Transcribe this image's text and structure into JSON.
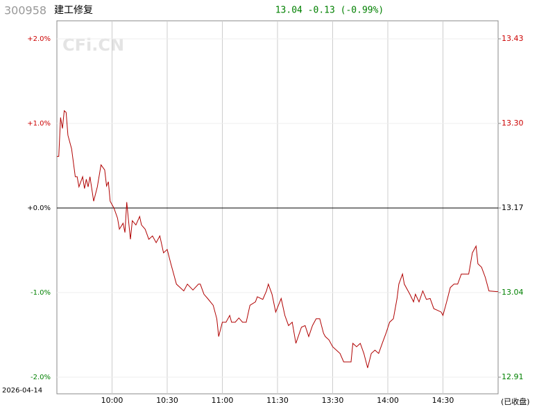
{
  "chart_data": {
    "type": "line",
    "code": "300958",
    "name": "建工修复",
    "quote": "13.04 -0.13 (-0.99%)",
    "date": "2026-04-14",
    "status": "(已收盘)",
    "watermark": "CFi.CN",
    "color": "#b00000",
    "up_color": "#cc0000",
    "down_color": "#008000",
    "flat_color": "#000000",
    "grid": true,
    "xlim": [
      0,
      240
    ],
    "xticks": [
      {
        "value": 30,
        "label": "10:00"
      },
      {
        "value": 60,
        "label": "10:30"
      },
      {
        "value": 90,
        "label": "11:00"
      },
      {
        "value": 120,
        "label": "11:30"
      },
      {
        "value": 150,
        "label": "13:30"
      },
      {
        "value": 180,
        "label": "14:00"
      },
      {
        "value": 210,
        "label": "14:30"
      }
    ],
    "ylim": [
      -2,
      2
    ],
    "yticks": [
      {
        "value": 2,
        "label": "+2.0%"
      },
      {
        "value": 1,
        "label": "+1.0%"
      },
      {
        "value": 0,
        "label": "+0.0%"
      },
      {
        "value": -1,
        "label": "-1.0%"
      },
      {
        "value": -2,
        "label": "-2.0%"
      }
    ],
    "y2lim": [
      12.91,
      13.43
    ],
    "y2ticks": [
      {
        "value": 13.43,
        "label": "13.43"
      },
      {
        "value": 13.3,
        "label": "13.30"
      },
      {
        "value": 13.17,
        "label": "13.17"
      },
      {
        "value": 13.04,
        "label": "13.04"
      },
      {
        "value": 12.91,
        "label": "12.91"
      }
    ],
    "x": [
      0,
      1,
      2,
      3,
      4,
      5,
      6,
      8,
      10,
      11,
      12,
      14,
      15,
      16,
      17,
      18,
      20,
      22,
      24,
      26,
      27,
      28,
      29,
      31,
      33,
      34,
      36,
      37,
      38,
      39,
      40,
      41,
      43,
      45,
      46,
      48,
      50,
      52,
      54,
      56,
      58,
      60,
      62,
      63,
      65,
      69,
      71,
      74,
      77,
      78,
      80,
      82,
      85,
      87,
      88,
      90,
      92,
      94,
      95,
      97,
      99,
      101,
      103,
      105,
      108,
      109,
      112,
      114,
      115,
      117,
      119,
      122,
      124,
      126,
      128,
      130,
      133,
      135,
      137,
      139,
      141,
      143,
      145,
      146,
      148,
      150,
      154,
      156,
      160,
      161,
      163,
      165,
      167,
      169,
      171,
      173,
      175,
      177,
      179,
      181,
      183,
      185,
      186,
      188,
      189,
      192,
      194,
      195,
      197,
      199,
      201,
      203,
      205,
      207,
      209,
      210,
      212,
      214,
      216,
      218,
      220,
      224,
      226,
      228,
      229,
      231,
      233,
      235,
      240
    ],
    "values": [
      0.61,
      0.61,
      1.07,
      0.94,
      1.15,
      1.13,
      0.86,
      0.7,
      0.37,
      0.37,
      0.25,
      0.37,
      0.23,
      0.34,
      0.25,
      0.37,
      0.08,
      0.25,
      0.51,
      0.45,
      0.26,
      0.31,
      0.08,
      0.0,
      -0.12,
      -0.25,
      -0.18,
      -0.29,
      0.07,
      -0.16,
      -0.37,
      -0.15,
      -0.2,
      -0.1,
      -0.2,
      -0.25,
      -0.37,
      -0.33,
      -0.41,
      -0.33,
      -0.53,
      -0.49,
      -0.66,
      -0.74,
      -0.9,
      -0.98,
      -0.9,
      -0.97,
      -0.9,
      -0.9,
      -1.02,
      -1.07,
      -1.15,
      -1.31,
      -1.52,
      -1.35,
      -1.35,
      -1.27,
      -1.35,
      -1.35,
      -1.3,
      -1.35,
      -1.35,
      -1.15,
      -1.11,
      -1.05,
      -1.08,
      -0.98,
      -0.9,
      -1.02,
      -1.23,
      -1.07,
      -1.27,
      -1.39,
      -1.35,
      -1.6,
      -1.41,
      -1.39,
      -1.52,
      -1.39,
      -1.31,
      -1.31,
      -1.48,
      -1.52,
      -1.56,
      -1.64,
      -1.72,
      -1.82,
      -1.82,
      -1.6,
      -1.64,
      -1.6,
      -1.72,
      -1.89,
      -1.72,
      -1.68,
      -1.72,
      -1.6,
      -1.48,
      -1.35,
      -1.31,
      -1.07,
      -0.9,
      -0.78,
      -0.9,
      -1.02,
      -1.11,
      -1.02,
      -1.11,
      -0.98,
      -1.08,
      -1.07,
      -1.19,
      -1.21,
      -1.23,
      -1.27,
      -1.11,
      -0.94,
      -0.9,
      -0.9,
      -0.78,
      -0.78,
      -0.53,
      -0.45,
      -0.66,
      -0.7,
      -0.82,
      -0.98,
      -0.99
    ]
  }
}
